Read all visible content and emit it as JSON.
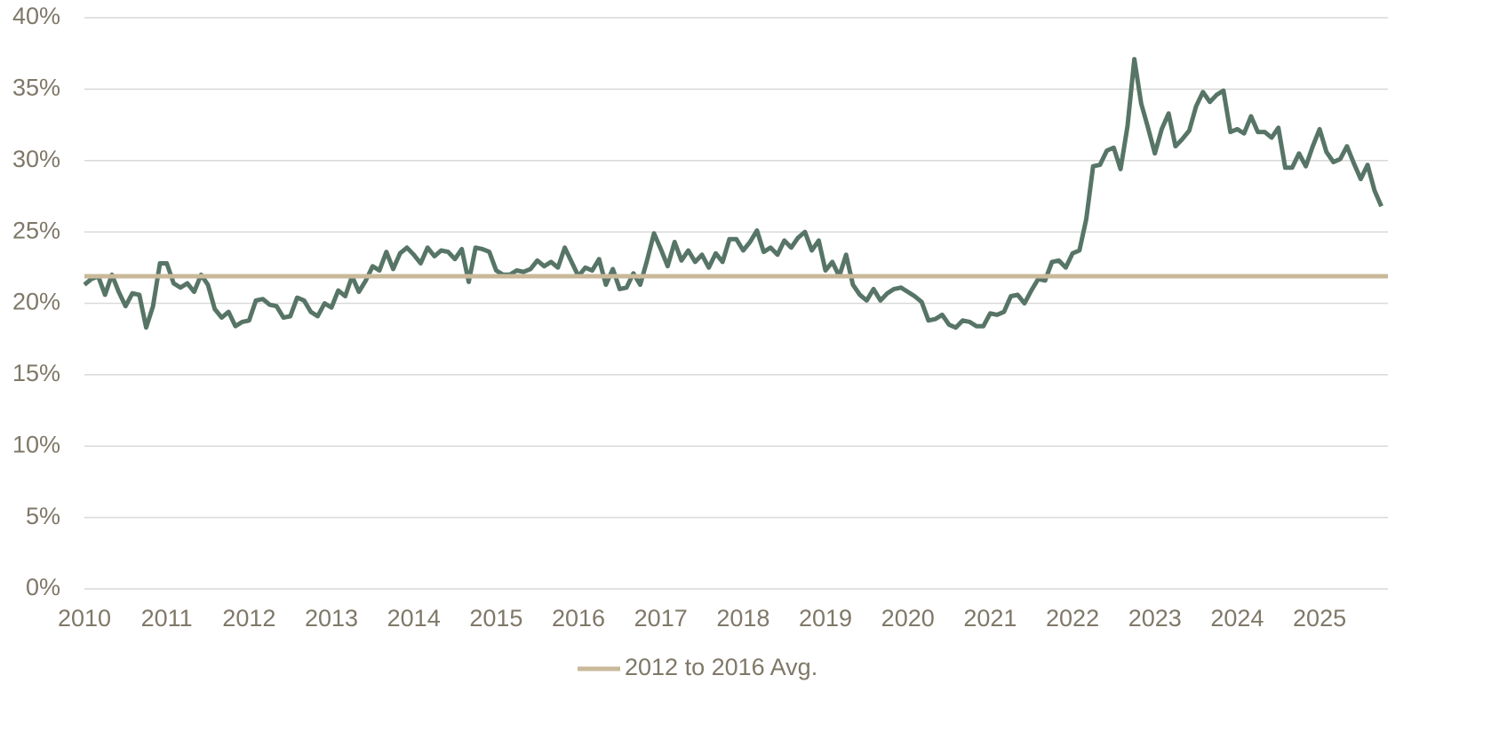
{
  "chart_data": {
    "type": "line",
    "xlim": [
      2010,
      2025.83
    ],
    "xticks": [
      2010,
      2011,
      2012,
      2013,
      2014,
      2015,
      2016,
      2017,
      2018,
      2019,
      2020,
      2021,
      2022,
      2023,
      2024,
      2025
    ],
    "ylim": [
      0,
      40
    ],
    "yticks": [
      {
        "value": 0,
        "label": "0%"
      },
      {
        "value": 5,
        "label": "5%"
      },
      {
        "value": 10,
        "label": "10%"
      },
      {
        "value": 15,
        "label": "15%"
      },
      {
        "value": 20,
        "label": "20%"
      },
      {
        "value": 25,
        "label": "25%"
      },
      {
        "value": 30,
        "label": "30%"
      },
      {
        "value": 35,
        "label": "35%"
      },
      {
        "value": 40,
        "label": "40%"
      }
    ],
    "grid": true,
    "legend": "bottom",
    "series": [
      {
        "color": "#577567",
        "x": [
          2010,
          2010.083,
          2010.167,
          2010.25,
          2010.333,
          2010.417,
          2010.5,
          2010.583,
          2010.667,
          2010.75,
          2010.833,
          2010.917,
          2011,
          2011.083,
          2011.167,
          2011.25,
          2011.333,
          2011.417,
          2011.5,
          2011.583,
          2011.667,
          2011.75,
          2011.833,
          2011.917,
          2012,
          2012.083,
          2012.167,
          2012.25,
          2012.333,
          2012.417,
          2012.5,
          2012.583,
          2012.667,
          2012.75,
          2012.833,
          2012.917,
          2013,
          2013.083,
          2013.167,
          2013.25,
          2013.333,
          2013.417,
          2013.5,
          2013.583,
          2013.667,
          2013.75,
          2013.833,
          2013.917,
          2014,
          2014.083,
          2014.167,
          2014.25,
          2014.333,
          2014.417,
          2014.5,
          2014.583,
          2014.667,
          2014.75,
          2014.833,
          2014.917,
          2015,
          2015.083,
          2015.167,
          2015.25,
          2015.333,
          2015.417,
          2015.5,
          2015.583,
          2015.667,
          2015.75,
          2015.833,
          2015.917,
          2016,
          2016.083,
          2016.167,
          2016.25,
          2016.333,
          2016.417,
          2016.5,
          2016.583,
          2016.667,
          2016.75,
          2016.833,
          2016.917,
          2017,
          2017.083,
          2017.167,
          2017.25,
          2017.333,
          2017.417,
          2017.5,
          2017.583,
          2017.667,
          2017.75,
          2017.833,
          2017.917,
          2018,
          2018.083,
          2018.167,
          2018.25,
          2018.333,
          2018.417,
          2018.5,
          2018.583,
          2018.667,
          2018.75,
          2018.833,
          2018.917,
          2019,
          2019.083,
          2019.167,
          2019.25,
          2019.333,
          2019.417,
          2019.5,
          2019.583,
          2019.667,
          2019.75,
          2019.833,
          2019.917,
          2020,
          2020.083,
          2020.167,
          2020.25,
          2020.333,
          2020.417,
          2020.5,
          2020.583,
          2020.667,
          2020.75,
          2020.833,
          2020.917,
          2021,
          2021.083,
          2021.167,
          2021.25,
          2021.333,
          2021.417,
          2021.5,
          2021.583,
          2021.667,
          2021.75,
          2021.833,
          2021.917,
          2022,
          2022.083,
          2022.167,
          2022.25,
          2022.333,
          2022.417,
          2022.5,
          2022.583,
          2022.667,
          2022.75,
          2022.833,
          2022.917,
          2023,
          2023.083,
          2023.167,
          2023.25,
          2023.333,
          2023.417,
          2023.5,
          2023.583,
          2023.667,
          2023.75,
          2023.833,
          2023.917,
          2024,
          2024.083,
          2024.167,
          2024.25,
          2024.333,
          2024.417,
          2024.5,
          2024.583,
          2024.667,
          2024.75,
          2024.833,
          2024.917,
          2025,
          2025.083,
          2025.167,
          2025.25,
          2025.333,
          2025.417,
          2025.5,
          2025.583,
          2025.667,
          2025.75
        ],
        "values": [
          21.3,
          21.7,
          21.9,
          20.6,
          22.0,
          20.8,
          19.8,
          20.7,
          20.6,
          18.3,
          19.8,
          22.8,
          22.8,
          21.4,
          21.1,
          21.4,
          20.8,
          22.0,
          21.3,
          19.6,
          19.0,
          19.4,
          18.4,
          18.7,
          18.8,
          20.2,
          20.3,
          19.9,
          19.8,
          19.0,
          19.1,
          20.4,
          20.2,
          19.4,
          19.1,
          20.0,
          19.7,
          20.9,
          20.5,
          21.9,
          20.8,
          21.6,
          22.6,
          22.3,
          23.6,
          22.4,
          23.5,
          23.9,
          23.4,
          22.8,
          23.9,
          23.3,
          23.7,
          23.6,
          23.1,
          23.8,
          21.5,
          23.9,
          23.8,
          23.6,
          22.3,
          22.0,
          22.0,
          22.3,
          22.2,
          22.4,
          23.0,
          22.6,
          22.9,
          22.5,
          23.9,
          22.9,
          21.9,
          22.5,
          22.3,
          23.1,
          21.3,
          22.4,
          21.0,
          21.1,
          22.1,
          21.3,
          23.0,
          24.9,
          23.8,
          22.6,
          24.3,
          23.0,
          23.7,
          22.9,
          23.4,
          22.5,
          23.5,
          22.9,
          24.5,
          24.5,
          23.7,
          24.3,
          25.1,
          23.6,
          23.9,
          23.4,
          24.4,
          23.9,
          24.6,
          25.0,
          23.7,
          24.4,
          22.3,
          22.9,
          21.9,
          23.4,
          21.3,
          20.6,
          20.2,
          21.0,
          20.2,
          20.7,
          21.0,
          21.1,
          20.8,
          20.5,
          20.1,
          18.8,
          18.9,
          19.2,
          18.5,
          18.3,
          18.8,
          18.7,
          18.4,
          18.4,
          19.3,
          19.2,
          19.4,
          20.5,
          20.6,
          20.0,
          20.9,
          21.7,
          21.6,
          22.9,
          23.0,
          22.5,
          23.5,
          23.7,
          25.9,
          29.6,
          29.7,
          30.7,
          30.9,
          29.4,
          32.4,
          37.1,
          34.0,
          32.3,
          30.5,
          32.2,
          33.3,
          31.0,
          31.5,
          32.1,
          33.8,
          34.8,
          34.1,
          34.6,
          34.9,
          32.0,
          32.2,
          31.9,
          33.1,
          32.0,
          32.0,
          31.6,
          32.3,
          29.5,
          29.5,
          30.5,
          29.6,
          31.0,
          32.2,
          30.6,
          29.9,
          30.1,
          31.0,
          29.8,
          28.7,
          29.7,
          27.9,
          26.8
        ]
      },
      {
        "name": "2012 to 2016 Avg.",
        "color": "#c9b99a",
        "x": [
          2010,
          2025.83
        ],
        "values": [
          21.9,
          21.9
        ]
      }
    ]
  }
}
